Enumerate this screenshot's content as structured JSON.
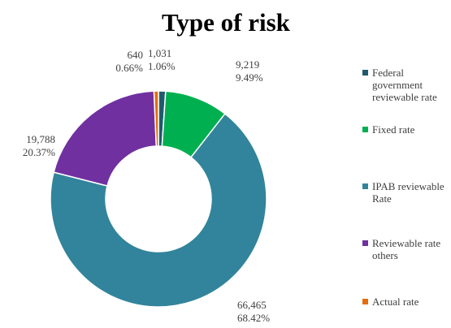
{
  "chart_data": {
    "type": "donut",
    "title": "Type of risk",
    "categories": [
      "Federal government reviewable rate",
      "Fixed rate",
      "IPAB reviewable Rate",
      "Reviewable rate others",
      "Actual rate"
    ],
    "values": [
      1031,
      9219,
      66465,
      19788,
      640
    ],
    "value_labels": [
      "1,031",
      "9,219",
      "66,465",
      "19,788",
      "640"
    ],
    "percentages": [
      1.06,
      9.49,
      68.42,
      20.37,
      0.66
    ],
    "percentage_labels": [
      "1.06%",
      "9.49%",
      "68.42%",
      "20.37%",
      "0.66%"
    ],
    "colors": [
      "#1f5a6e",
      "#00b050",
      "#31849b",
      "#7030a0",
      "#e46c0a"
    ],
    "legend": "right"
  }
}
